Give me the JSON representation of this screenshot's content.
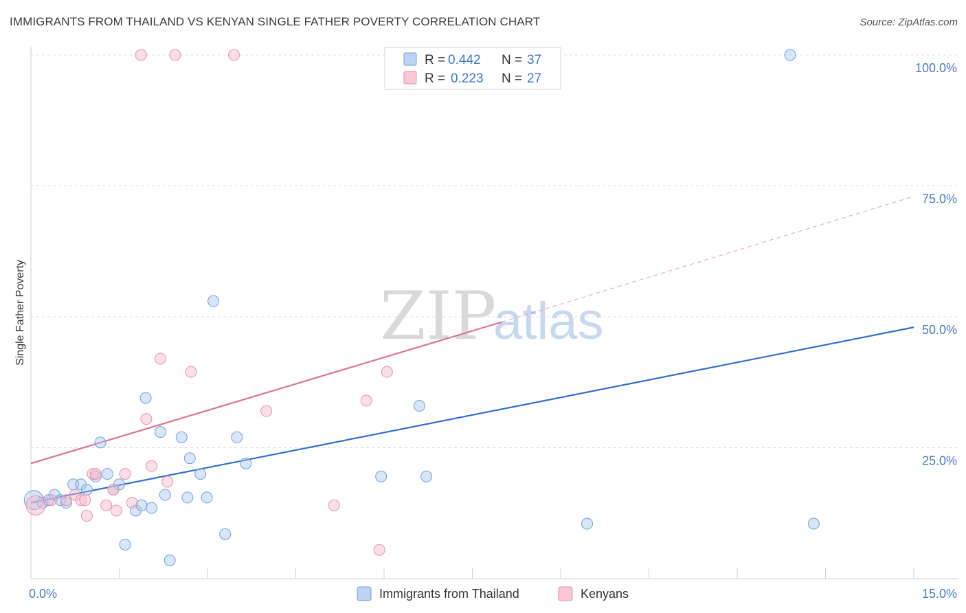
{
  "title": "IMMIGRANTS FROM THAILAND VS KENYAN SINGLE FATHER POVERTY CORRELATION CHART",
  "source": "Source: ZipAtlas.com",
  "chart_data": {
    "type": "scatter",
    "ylabel": "Single Father Poverty",
    "xlim": [
      0,
      15
    ],
    "ylim": [
      0,
      105
    ],
    "x_tick_labels": [
      "0.0%",
      "15.0%"
    ],
    "y_ticks": [
      25,
      50,
      75,
      100
    ],
    "y_tick_labels": [
      "25.0%",
      "50.0%",
      "75.0%",
      "100.0%"
    ],
    "watermark": {
      "zip": "ZIP",
      "atlas": "atlas"
    },
    "legend": [
      {
        "r_label": "R =",
        "r_value": "0.442",
        "n_label": "N =",
        "n_value": "37"
      },
      {
        "r_label": "R =",
        "r_value": "0.223",
        "n_label": "N =",
        "n_value": "27"
      }
    ],
    "series": [
      {
        "name": "Immigrants from Thailand",
        "color": "#a9c8f0",
        "stroke": "#6f9fdc",
        "line_color": "#2f6fd0",
        "trend": {
          "x0": 0,
          "y0": 14.5,
          "x1": 15,
          "y1": 48
        },
        "points": [
          [
            0.05,
            15.0,
            12
          ],
          [
            0.2,
            14.5,
            7
          ],
          [
            0.3,
            15.0,
            7
          ],
          [
            0.4,
            16.0,
            7
          ],
          [
            0.5,
            15.0,
            7
          ],
          [
            0.6,
            14.5,
            7
          ],
          [
            0.72,
            18.0,
            7
          ],
          [
            0.85,
            18.0,
            7
          ],
          [
            0.95,
            17.0,
            7
          ],
          [
            1.1,
            19.5,
            7
          ],
          [
            1.18,
            26.0,
            7
          ],
          [
            1.3,
            20.0,
            7
          ],
          [
            1.4,
            17.0,
            7
          ],
          [
            1.5,
            18.0,
            7
          ],
          [
            1.6,
            6.5,
            7
          ],
          [
            1.78,
            13.0,
            7
          ],
          [
            1.88,
            14.0,
            7
          ],
          [
            1.95,
            34.5,
            7
          ],
          [
            2.05,
            13.5,
            7
          ],
          [
            2.2,
            28.0,
            7
          ],
          [
            2.28,
            16.0,
            7
          ],
          [
            2.36,
            3.5,
            7
          ],
          [
            2.56,
            27.0,
            7
          ],
          [
            2.66,
            15.5,
            7
          ],
          [
            2.7,
            23.0,
            7
          ],
          [
            2.88,
            20.0,
            7
          ],
          [
            2.99,
            15.5,
            7
          ],
          [
            3.1,
            53.0,
            7
          ],
          [
            3.3,
            8.5,
            7
          ],
          [
            3.5,
            27.0,
            7
          ],
          [
            3.65,
            22.0,
            7
          ],
          [
            5.95,
            19.5,
            7
          ],
          [
            6.6,
            33.0,
            7
          ],
          [
            6.72,
            19.5,
            7
          ],
          [
            9.45,
            10.5,
            7
          ],
          [
            12.9,
            100.0,
            7
          ],
          [
            13.3,
            10.5,
            7
          ]
        ]
      },
      {
        "name": "Kenyans",
        "color": "#f7b8cb",
        "stroke": "#ea8fab",
        "line_color": "#e0709a",
        "trend": {
          "x0": 0,
          "y0": 22,
          "x1": 8.0,
          "y1": 49.0
        },
        "trend_dashed": {
          "x0": 8.0,
          "y0": 49.0,
          "x1": 15,
          "y1": 73
        },
        "points": [
          [
            0.08,
            14.0,
            12
          ],
          [
            0.35,
            15.0,
            7
          ],
          [
            0.6,
            15.0,
            7
          ],
          [
            0.75,
            16.0,
            7
          ],
          [
            0.85,
            15.0,
            7
          ],
          [
            0.95,
            12.0,
            7
          ],
          [
            1.05,
            20.0,
            7
          ],
          [
            1.28,
            14.0,
            7
          ],
          [
            1.4,
            17.0,
            7
          ],
          [
            1.45,
            13.0,
            7
          ],
          [
            1.6,
            20.0,
            7
          ],
          [
            1.72,
            14.5,
            7
          ],
          [
            1.87,
            100.0,
            7
          ],
          [
            1.96,
            30.5,
            7
          ],
          [
            2.05,
            21.5,
            7
          ],
          [
            2.2,
            42.0,
            7
          ],
          [
            2.32,
            18.5,
            7
          ],
          [
            2.45,
            100.0,
            7
          ],
          [
            2.72,
            39.5,
            7
          ],
          [
            3.45,
            100.0,
            7
          ],
          [
            4.0,
            32.0,
            7
          ],
          [
            5.15,
            14.0,
            7
          ],
          [
            5.7,
            34.0,
            7
          ],
          [
            5.92,
            5.5,
            7
          ],
          [
            6.05,
            39.5,
            7
          ],
          [
            1.1,
            20.0,
            7
          ],
          [
            0.92,
            15.0,
            7
          ]
        ]
      }
    ]
  }
}
